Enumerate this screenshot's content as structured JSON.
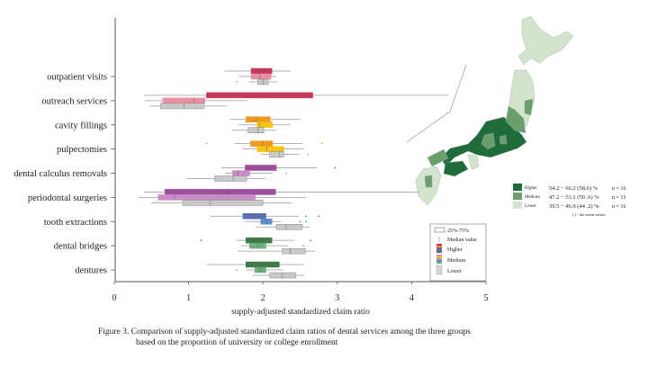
{
  "chart_data": {
    "type": "boxplot",
    "xlabel": "supply-adjusted standardized claim ratio",
    "xlim": [
      0,
      5
    ],
    "xticks": [
      "0",
      "1",
      "2",
      "3",
      "4",
      "5"
    ],
    "groups": [
      "Higher",
      "Medium",
      "Lower"
    ],
    "categories": [
      {
        "name": "outpatient visits",
        "colors": [
          "#c8385a",
          "#e88fa3",
          "#c9c9c9"
        ],
        "boxes": [
          {
            "q1": 1.84,
            "median": 1.97,
            "q3": 2.12,
            "wlo": 1.48,
            "whi": 2.37,
            "outliers": []
          },
          {
            "q1": 1.84,
            "median": 1.96,
            "q3": 2.11,
            "wlo": 1.67,
            "whi": 2.18,
            "outliers": []
          },
          {
            "q1": 1.93,
            "median": 2.0,
            "q3": 2.07,
            "wlo": 1.81,
            "whi": 2.19,
            "outliers": [
              1.65
            ]
          }
        ]
      },
      {
        "name": "outreach services",
        "colors": [
          "#c8385a",
          "#e88fa3",
          "#c9c9c9"
        ],
        "boxes": [
          {
            "q1": 1.24,
            "median": 2.02,
            "q3": 2.67,
            "wlo": 0.4,
            "whi": 4.5,
            "outliers": []
          },
          {
            "q1": 0.65,
            "median": 1.07,
            "q3": 1.22,
            "wlo": 0.41,
            "whi": 1.8,
            "outliers": []
          },
          {
            "q1": 0.62,
            "median": 0.94,
            "q3": 1.21,
            "wlo": 0.47,
            "whi": 1.52,
            "outliers": []
          }
        ]
      },
      {
        "name": "cavity fillings",
        "colors": [
          "#ee9a1e",
          "#f5c518",
          "#c9c9c9"
        ],
        "boxes": [
          {
            "q1": 1.77,
            "median": 1.91,
            "q3": 2.1,
            "wlo": 1.55,
            "whi": 2.51,
            "outliers": []
          },
          {
            "q1": 1.92,
            "median": 1.96,
            "q3": 2.13,
            "wlo": 1.67,
            "whi": 2.37,
            "outliers": []
          },
          {
            "q1": 1.8,
            "median": 1.93,
            "q3": 2.01,
            "wlo": 1.58,
            "whi": 2.18,
            "outliers": []
          }
        ]
      },
      {
        "name": "pulpectomies",
        "colors": [
          "#ee9a1e",
          "#f5c518",
          "#c9c9c9"
        ],
        "boxes": [
          {
            "q1": 1.83,
            "median": 2.0,
            "q3": 2.13,
            "wlo": 1.62,
            "whi": 2.53,
            "outliers": [
              1.24,
              2.79
            ]
          },
          {
            "q1": 1.92,
            "median": 2.05,
            "q3": 2.28,
            "wlo": 1.72,
            "whi": 2.55,
            "outliers": []
          },
          {
            "q1": 2.09,
            "median": 2.22,
            "q3": 2.28,
            "wlo": 1.97,
            "whi": 2.48,
            "outliers": [
              2.6
            ]
          }
        ]
      },
      {
        "name": "dental calculus removals",
        "colors": [
          "#9c4d9c",
          "#c98cc8",
          "#c9c9c9"
        ],
        "boxes": [
          {
            "q1": 1.76,
            "median": 2.02,
            "q3": 2.18,
            "wlo": 1.44,
            "whi": 2.73,
            "outliers": [
              2.97
            ]
          },
          {
            "q1": 1.59,
            "median": 1.66,
            "q3": 1.82,
            "wlo": 1.49,
            "whi": 2.12,
            "outliers": [
              2.31
            ]
          },
          {
            "q1": 1.35,
            "median": 1.6,
            "q3": 1.78,
            "wlo": 0.97,
            "whi": 2.03,
            "outliers": []
          }
        ]
      },
      {
        "name": "periodontal surgeries",
        "colors": [
          "#9c4d9c",
          "#c98cc8",
          "#c9c9c9"
        ],
        "boxes": [
          {
            "q1": 0.68,
            "median": 1.53,
            "q3": 2.17,
            "wlo": 0.4,
            "whi": 4.1,
            "outliers": []
          },
          {
            "q1": 0.59,
            "median": 0.81,
            "q3": 1.9,
            "wlo": 0.33,
            "whi": 2.58,
            "outliers": []
          },
          {
            "q1": 0.92,
            "median": 1.29,
            "q3": 2.0,
            "wlo": 0.5,
            "whi": 2.39,
            "outliers": []
          }
        ]
      },
      {
        "name": "tooth extractions",
        "colors": [
          "#5a6fb5",
          "#5b8fc8",
          "#c9c9c9"
        ],
        "boxes": [
          {
            "q1": 1.73,
            "median": 1.93,
            "q3": 2.04,
            "wlo": 1.29,
            "whi": 2.48,
            "outliers": [
              2.58,
              2.75
            ]
          },
          {
            "q1": 1.97,
            "median": 2.05,
            "q3": 2.12,
            "wlo": 1.76,
            "whi": 2.24,
            "outliers": [
              2.5,
              2.58
            ]
          },
          {
            "q1": 2.18,
            "median": 2.31,
            "q3": 2.53,
            "wlo": 1.9,
            "whi": 2.62,
            "outliers": []
          }
        ]
      },
      {
        "name": "dental bridges",
        "colors": [
          "#3e7a4a",
          "#6fae7a",
          "#c9c9c9"
        ],
        "boxes": [
          {
            "q1": 1.77,
            "median": 1.86,
            "q3": 2.12,
            "wlo": 1.64,
            "whi": 2.42,
            "outliers": [
              1.17,
              2.64
            ]
          },
          {
            "q1": 1.82,
            "median": 1.93,
            "q3": 2.04,
            "wlo": 1.7,
            "whi": 2.34,
            "outliers": [
              2.54
            ]
          },
          {
            "q1": 2.26,
            "median": 2.37,
            "q3": 2.57,
            "wlo": 1.66,
            "whi": 2.7,
            "outliers": []
          }
        ]
      },
      {
        "name": "dentures",
        "colors": [
          "#3e7a4a",
          "#6fae7a",
          "#c9c9c9"
        ],
        "boxes": [
          {
            "q1": 1.77,
            "median": 2.0,
            "q3": 2.22,
            "wlo": 1.24,
            "whi": 2.55,
            "outliers": []
          },
          {
            "q1": 1.89,
            "median": 1.97,
            "q3": 2.04,
            "wlo": 1.77,
            "whi": 2.28,
            "outliers": [
              1.65
            ]
          },
          {
            "q1": 2.09,
            "median": 2.26,
            "q3": 2.44,
            "wlo": 1.86,
            "whi": 2.56,
            "outliers": []
          }
        ]
      }
    ],
    "box_legend": {
      "items": [
        "25%-75%",
        "Median value",
        "Higher",
        "Medium",
        "Lower"
      ]
    },
    "grid": false
  },
  "map_legend": {
    "colors": {
      "higher": "#1f6b3a",
      "medium": "#6a9e6a",
      "lower": "#d3e4cd"
    },
    "rows": [
      {
        "label": "Higher",
        "range": "54.2 − 66.2 (58.6) %",
        "n": "n = 16"
      },
      {
        "label": "Medium",
        "range": "47.2 − 53.1 (50 .6) %",
        "n": "n = 15"
      },
      {
        "label": "Lower",
        "range": "39.5 − 46.9 (44 .2) %",
        "n": "n = 16"
      }
    ],
    "note": "( ) : the mean values"
  },
  "caption": {
    "line1": "Figure 3. Comparison of supply-adjusted standardized claim ratios of dental services among the three groups",
    "line2": "based on the proportion of university or college enrollment"
  }
}
